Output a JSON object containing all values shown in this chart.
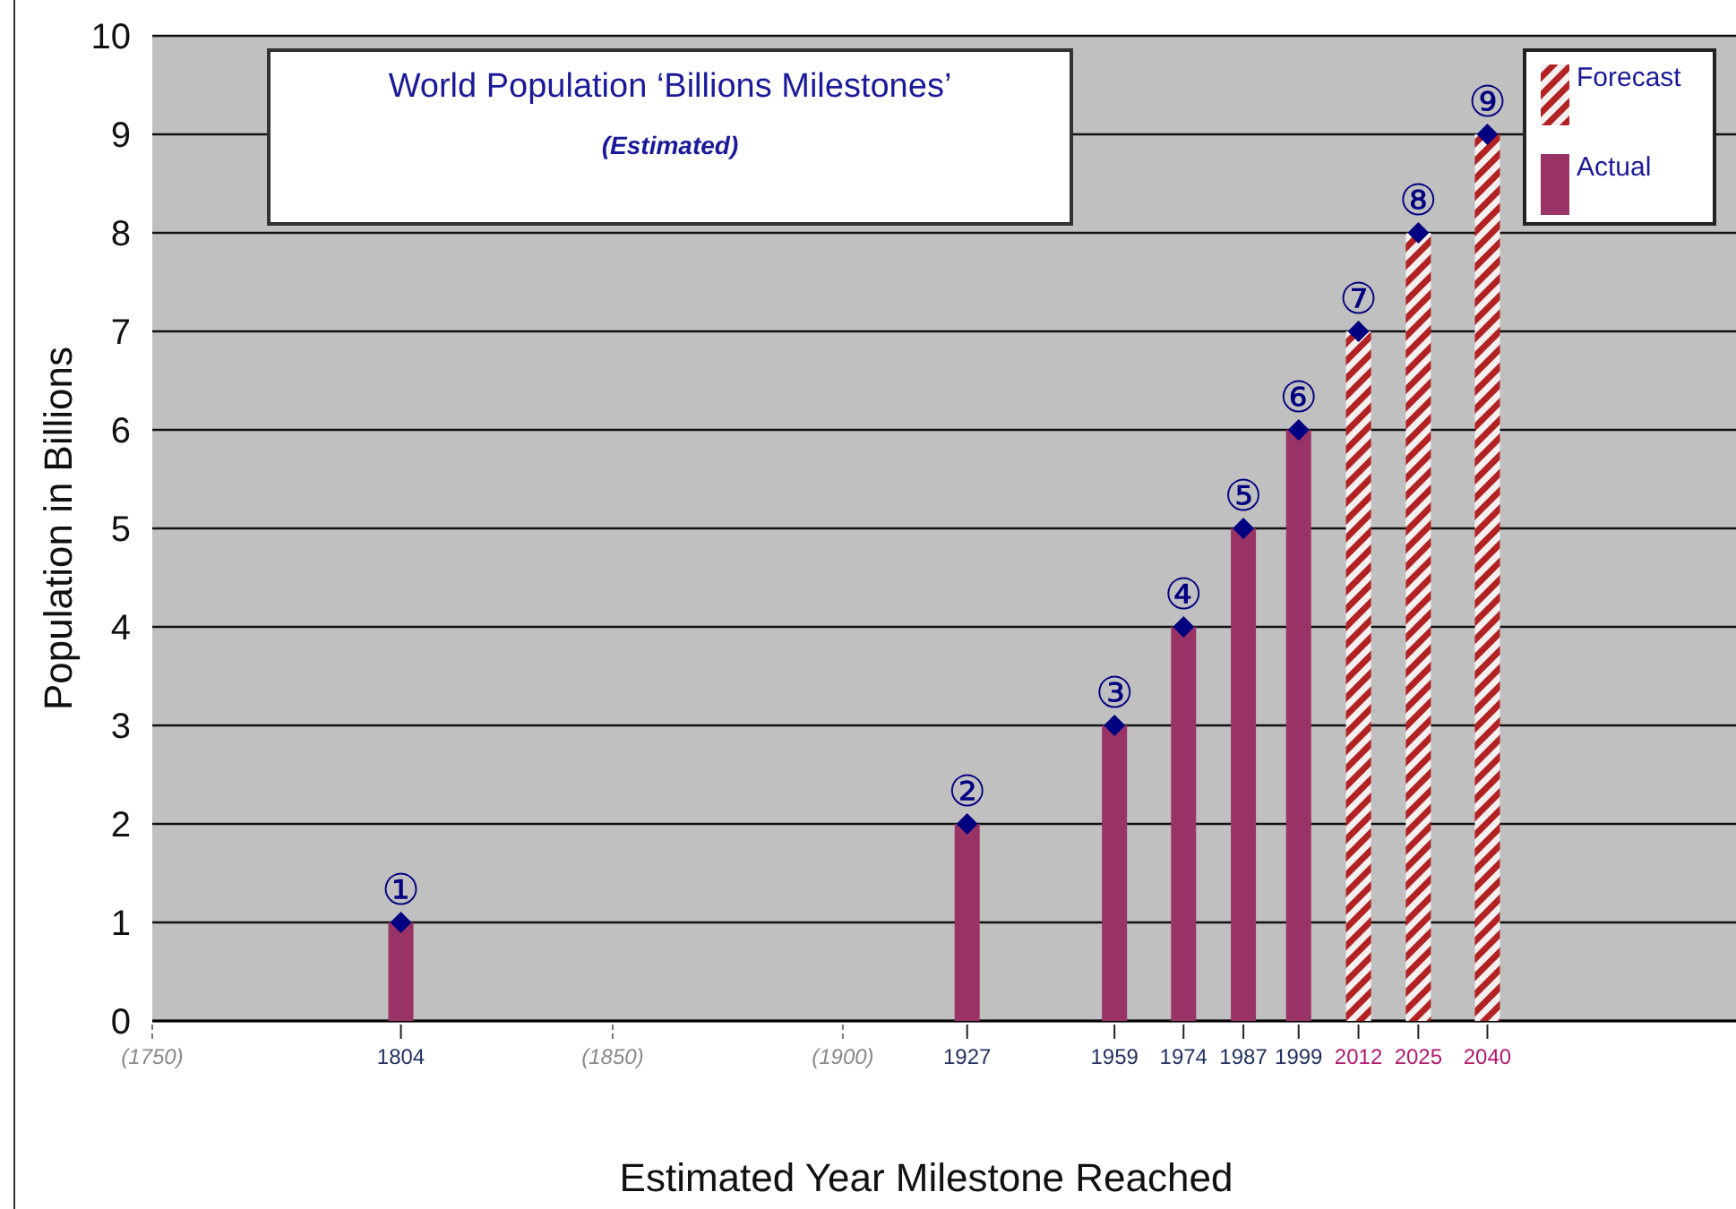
{
  "chart_data": {
    "type": "bar",
    "title": "World Population ‘Billions Milestones’",
    "subtitle": "(Estimated)",
    "xlabel": "Estimated Year Milestone Reached",
    "ylabel": "Population in Billions",
    "series": [
      {
        "name": "Actual",
        "color": "#993366",
        "x": [
          1804,
          1927,
          1959,
          1974,
          1987,
          1999
        ],
        "values": [
          1,
          2,
          3,
          4,
          5,
          6
        ],
        "value_labels": [
          "①",
          "②",
          "③",
          "④",
          "⑤",
          "⑥"
        ]
      },
      {
        "name": "Forecast",
        "color": "#b22222",
        "x": [
          2012,
          2025,
          2040
        ],
        "values": [
          7,
          8,
          9
        ],
        "value_labels": [
          "⑦",
          "⑧",
          "⑨"
        ]
      },
      {
        "type": "scatter",
        "color": "#000080",
        "x": [
          1804,
          1927,
          1959,
          1974,
          1987,
          1999,
          2012,
          2025,
          2040
        ],
        "values": [
          1,
          2,
          3,
          4,
          5,
          6,
          7,
          8,
          9
        ]
      }
    ],
    "xlim": [
      1750,
      2094
    ],
    "xticks": [
      {
        "value": 1750,
        "label": "(1750)"
      },
      1804,
      {
        "value": 1850,
        "label": "(1850)"
      },
      {
        "value": 1900,
        "label": "(1900)"
      },
      1927,
      1959,
      1974,
      1987,
      1999,
      2012,
      2025,
      2040
    ],
    "ylim": [
      0,
      10
    ],
    "yticks": [
      0,
      1,
      2,
      3,
      4,
      5,
      6,
      7,
      8,
      9,
      10
    ],
    "grid": "y",
    "legend": "top right",
    "marker": "diamond"
  }
}
